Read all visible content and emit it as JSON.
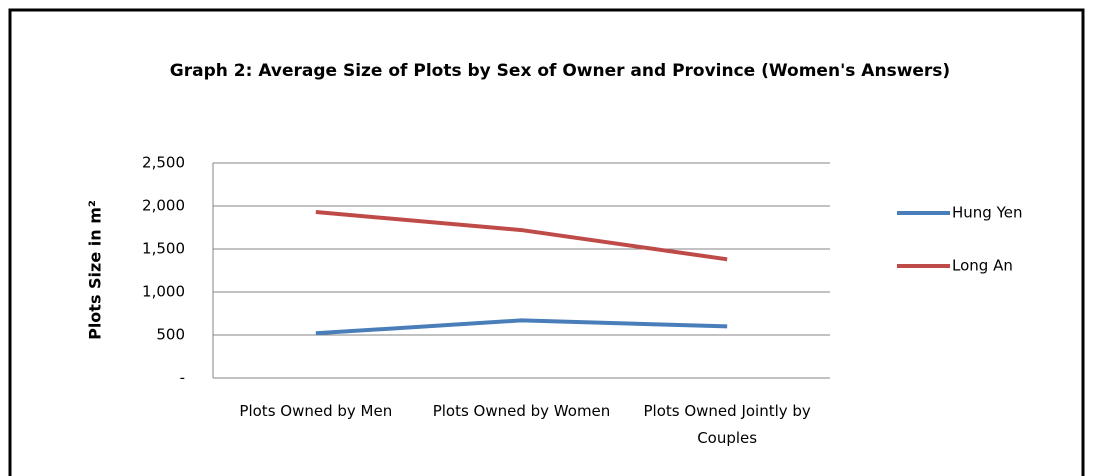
{
  "chart_data": {
    "type": "line",
    "title": "Graph 2: Average Size of Plots by Sex of Owner and Province (Women's Answers)",
    "y_label": "Plots Size in m²",
    "categories": [
      "Plots Owned by Men",
      "Plots Owned by Women",
      "Plots Owned Jointly by Couples"
    ],
    "series": [
      {
        "name": "Hung Yen",
        "color": "#4a7ebb",
        "values": [
          520,
          670,
          600
        ]
      },
      {
        "name": "Long An",
        "color": "#be4b48",
        "values": [
          1930,
          1720,
          1380
        ]
      }
    ],
    "ylim": [
      0,
      2500
    ],
    "yticks": [
      {
        "value": 0,
        "label": "-"
      },
      500,
      {
        "value": 1000,
        "label": "1,000"
      },
      {
        "value": 1500,
        "label": "1,500"
      },
      {
        "value": 2000,
        "label": "2,000"
      },
      {
        "value": 2500,
        "label": "2,500"
      }
    ],
    "grid": true,
    "legend": "right"
  }
}
